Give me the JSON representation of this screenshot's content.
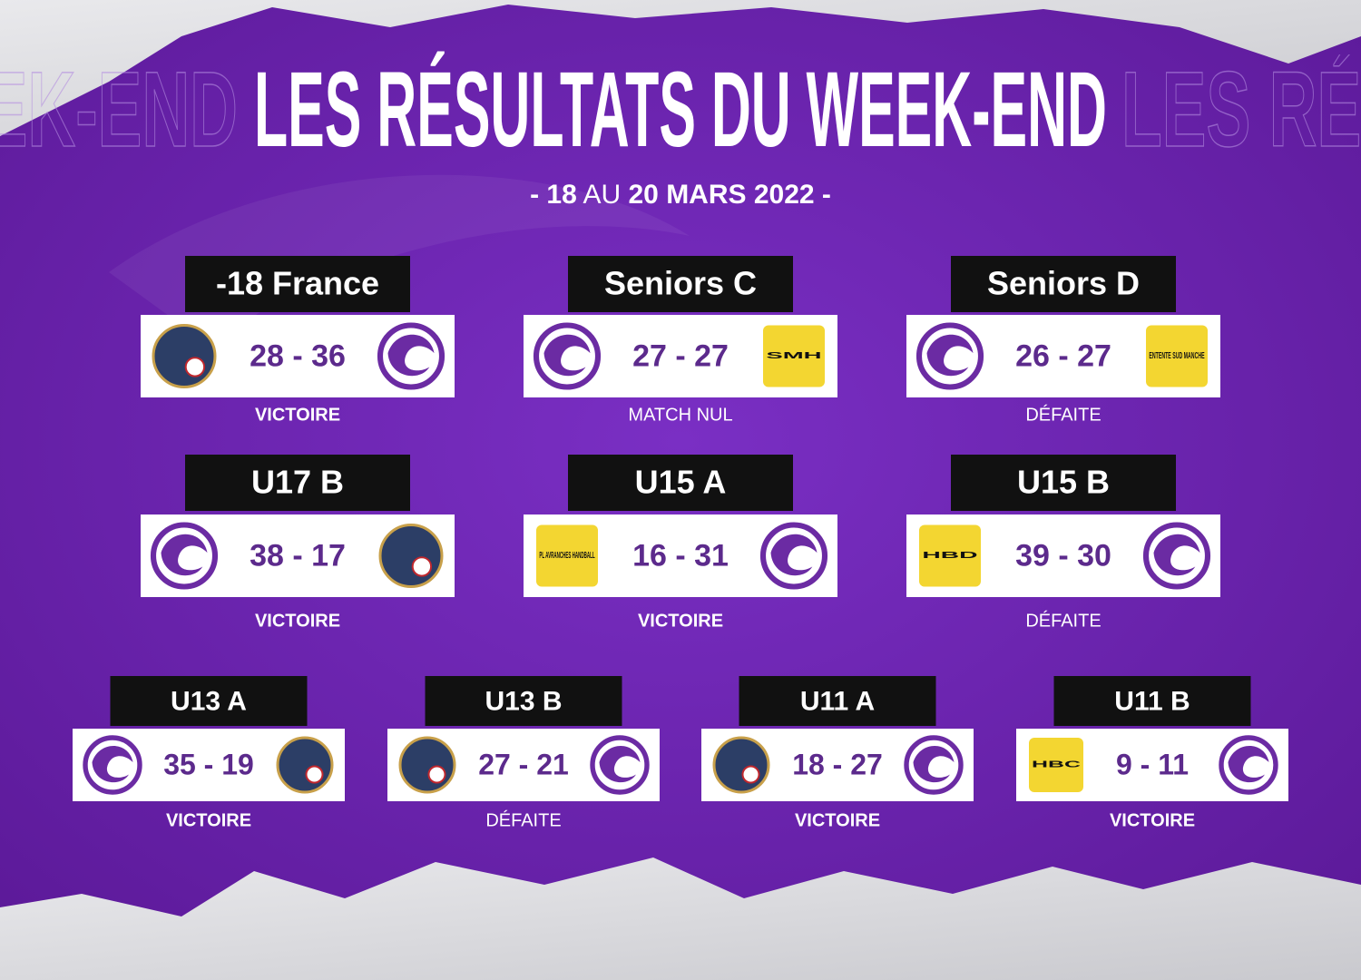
{
  "header": {
    "title": "LES RÉSULTATS DU WEEK-END",
    "subtitle": {
      "from": "- 18",
      "middle": "AU",
      "to": "20 MARS 2022 -"
    }
  },
  "matches": [
    {
      "team": "-18 France",
      "score": "28 - 36",
      "result": "VICTOIRE"
    },
    {
      "team": "Seniors C",
      "score": "27 - 27",
      "result": "MATCH NUL",
      "opponent_logo_text": "SMH"
    },
    {
      "team": "Seniors D",
      "score": "26 - 27",
      "result": "DÉFAITE",
      "opponent_logo_text": "ENTENTE SUD MANCHE"
    },
    {
      "team": "U17 B",
      "score": "38 - 17",
      "result": "VICTOIRE"
    },
    {
      "team": "U15 A",
      "score": "16 - 31",
      "result": "VICTOIRE",
      "opponent_logo_text": "PL AVRANCHES HANDBALL"
    },
    {
      "team": "U15 B",
      "score": "39 - 30",
      "result": "DÉFAITE",
      "opponent_logo_text": "HBD"
    },
    {
      "team": "U13 A",
      "score": "35 - 19",
      "result": "VICTOIRE"
    },
    {
      "team": "U13 B",
      "score": "27 - 21",
      "result": "DÉFAITE"
    },
    {
      "team": "U11 A",
      "score": "18 - 27",
      "result": "VICTOIRE"
    },
    {
      "team": "U11 B",
      "score": "9 - 11",
      "result": "VICTOIRE",
      "opponent_logo_text": "HBC"
    }
  ]
}
